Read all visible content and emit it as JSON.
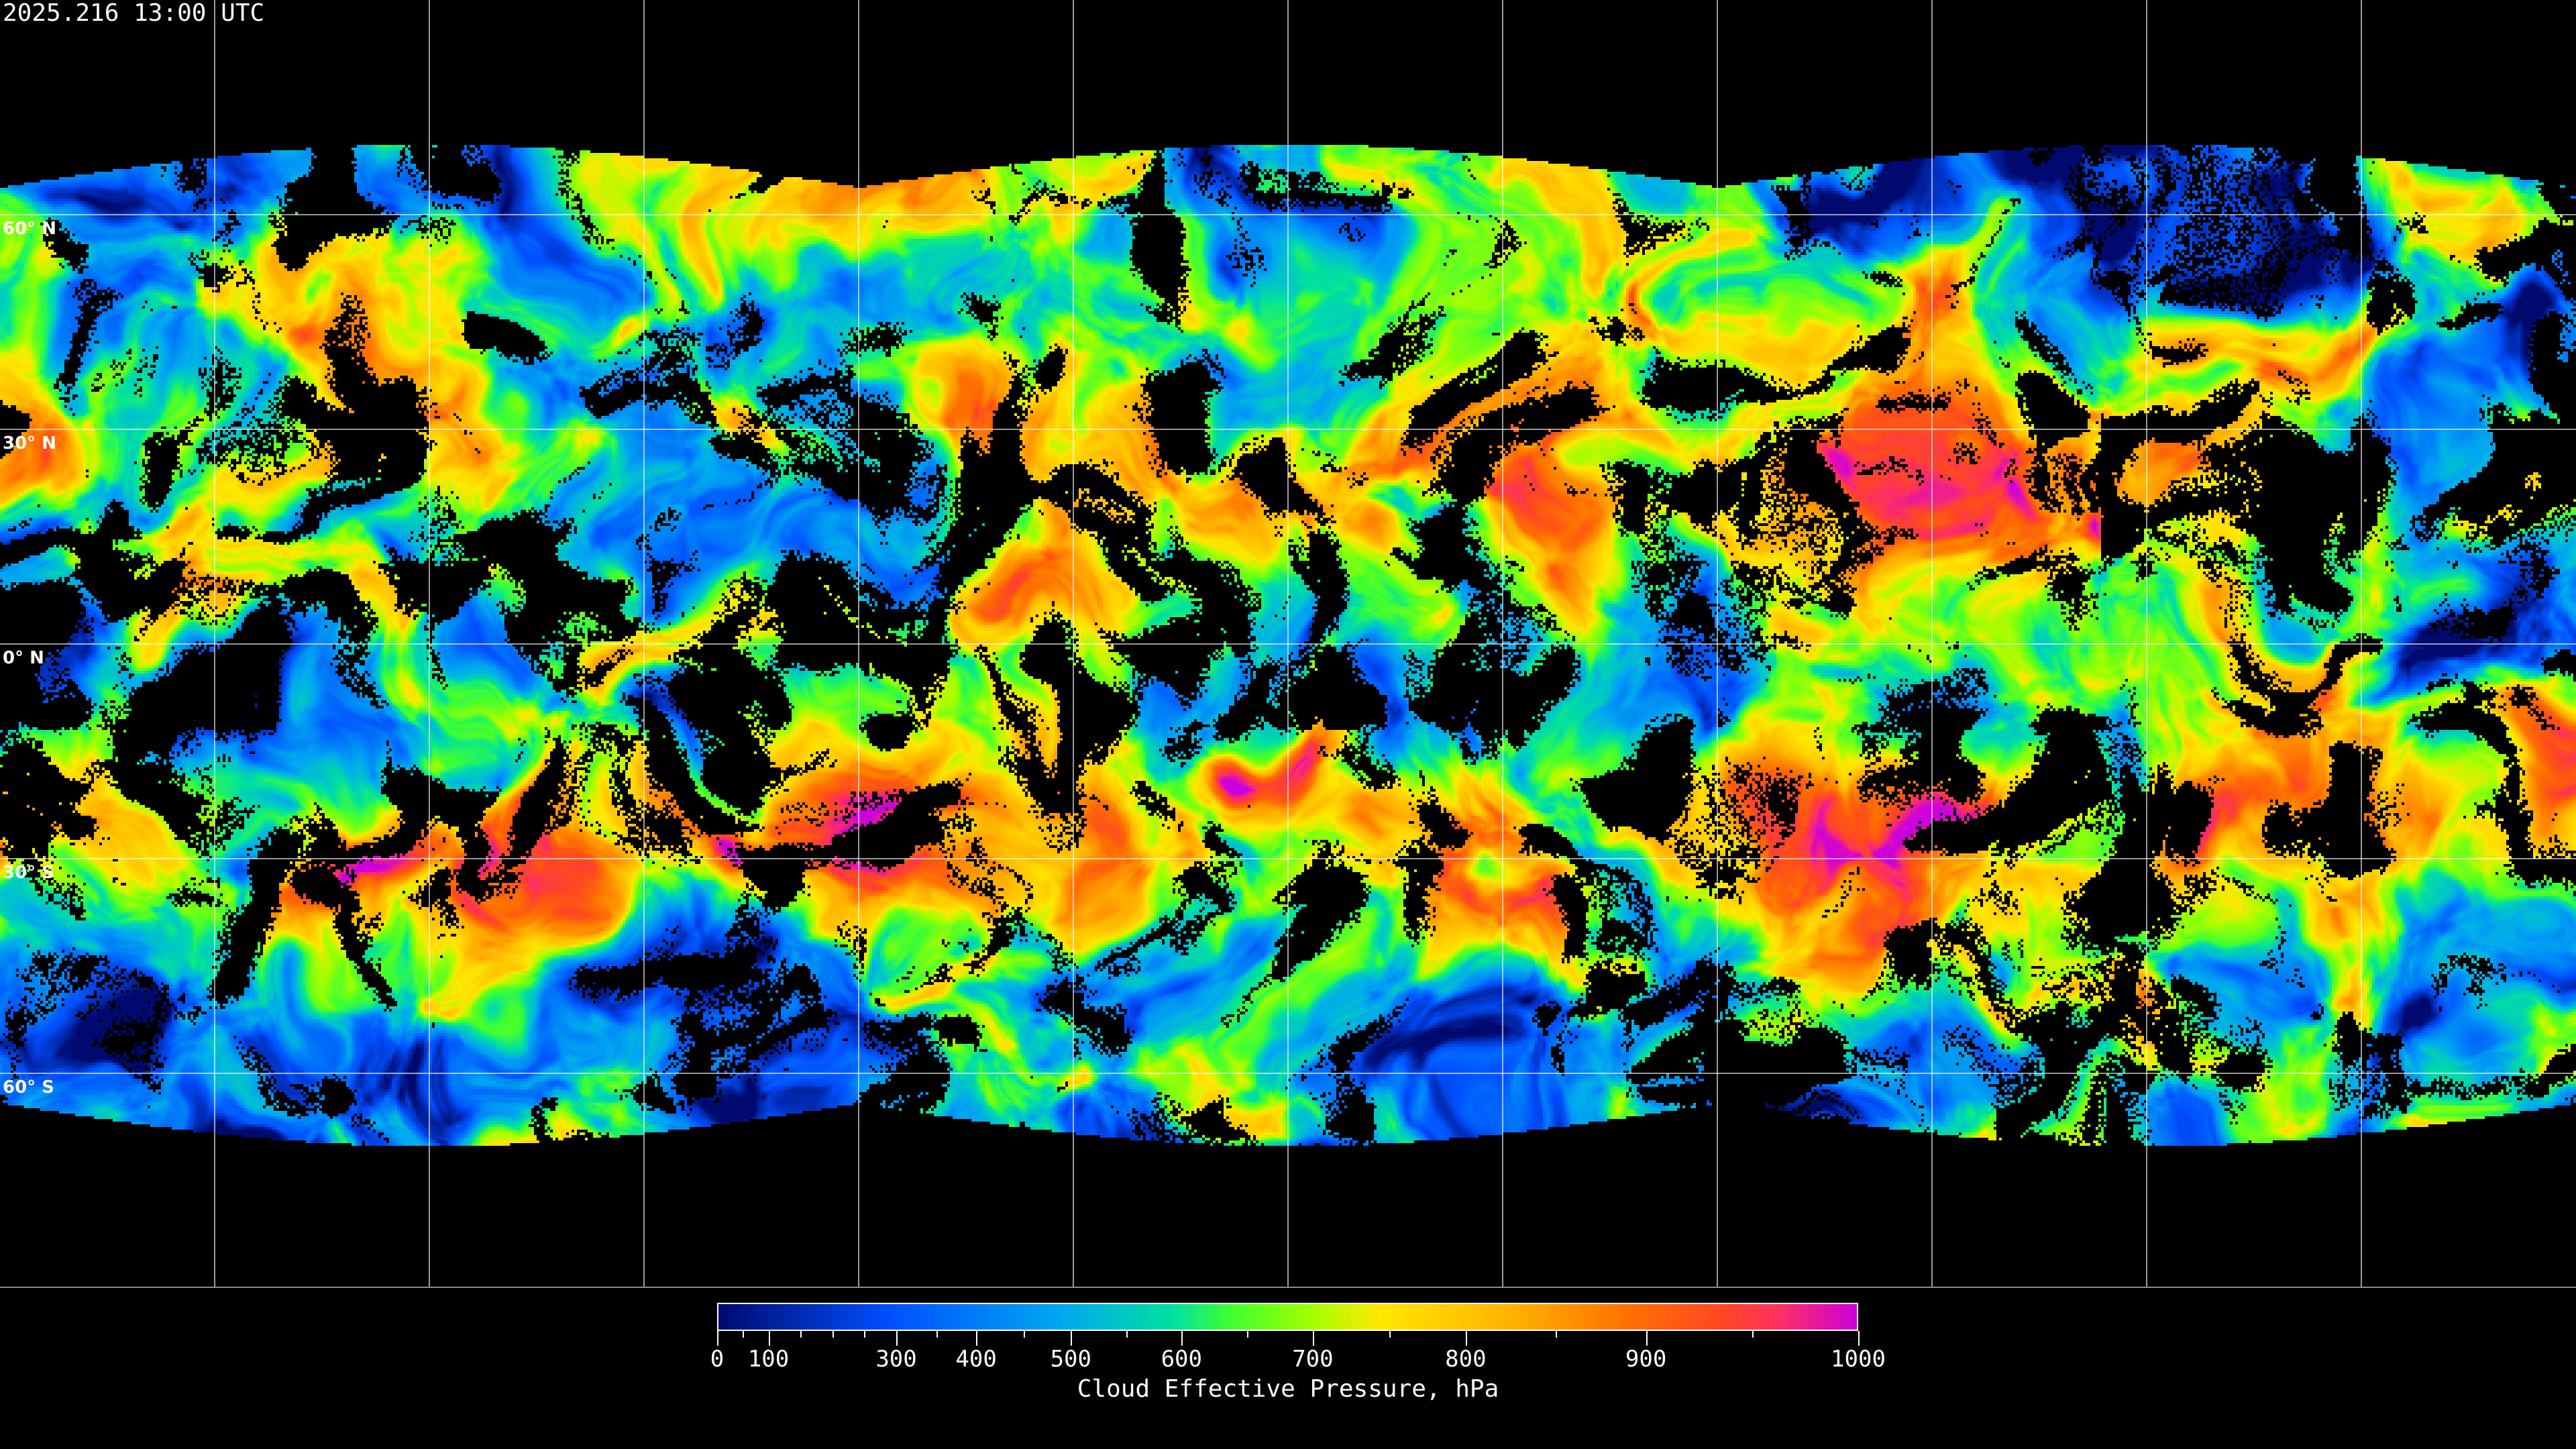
{
  "title": "2025.216 13:00 UTC",
  "map": {
    "projection": "equirectangular",
    "lat_labels": [
      "60° N",
      "30° N",
      "0° N",
      "30° S",
      "60° S"
    ],
    "lat_values": [
      60,
      30,
      0,
      -30,
      -60
    ],
    "lon_grid_step_deg": 30,
    "grid": true,
    "grid_color": "#ffffff",
    "coastline_color": "#ffffff",
    "no_data_color": "#000000"
  },
  "colorbar": {
    "title": "Cloud Effective Pressure, hPa",
    "range": [
      0,
      1000
    ],
    "tick_labels": [
      "0",
      "100",
      "300",
      "400",
      "500",
      "600",
      "700",
      "800",
      "900",
      "1000"
    ],
    "tick_values": [
      0,
      100,
      300,
      400,
      500,
      600,
      700,
      800,
      900,
      1000
    ],
    "colors": [
      "#000a6e",
      "#0050ff",
      "#00a8f0",
      "#00e0a0",
      "#40ff30",
      "#a0ff00",
      "#ffe800",
      "#ffb000",
      "#ff7000",
      "#ff4820",
      "#ff3060",
      "#cc00dd"
    ]
  }
}
